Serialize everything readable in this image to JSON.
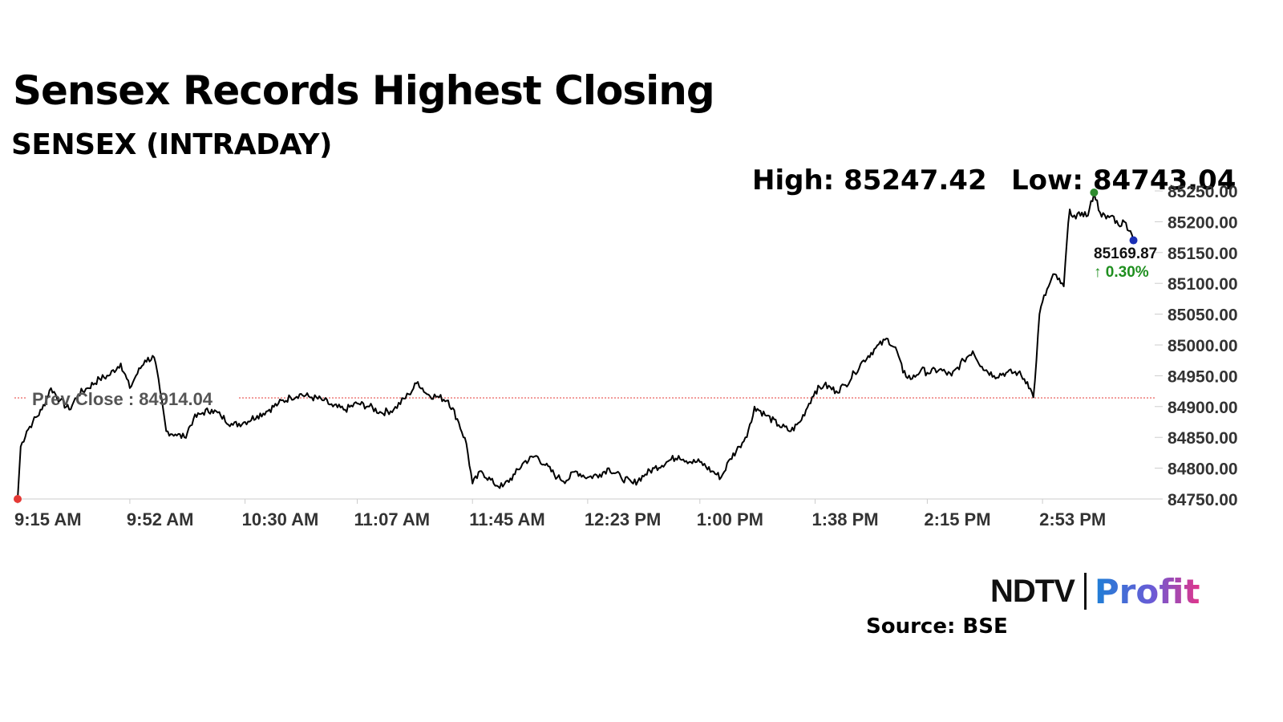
{
  "header": {
    "title": "Sensex Records Highest Closing",
    "subtitle": "SENSEX (INTRADAY)",
    "high_text": "High: 85247.42",
    "low_text": "Low: 84743.04"
  },
  "footer": {
    "brand_left": "NDTV",
    "brand_right": "Profit",
    "source": "Source: BSE"
  },
  "colors": {
    "line": "#000000",
    "prev_close_line": "#e53935",
    "start_marker": "#e53935",
    "high_marker": "#2e8b2e",
    "last_marker": "#1a2fb5",
    "change_text": "#1f8f1f",
    "grid_axis": "#cccccc"
  },
  "chart_data": {
    "type": "line",
    "title": "SENSEX (INTRADAY)",
    "xlabel": "",
    "ylabel": "",
    "ylim": [
      84750,
      85250
    ],
    "grid": false,
    "y_axis_position": "right",
    "x_ticks": [
      "9:15 AM",
      "9:52 AM",
      "10:30 AM",
      "11:07 AM",
      "11:45 AM",
      "12:23 PM",
      "1:00 PM",
      "1:38 PM",
      "2:15 PM",
      "2:53 PM"
    ],
    "y_ticks": [
      "85250.00",
      "85200.00",
      "85150.00",
      "85100.00",
      "85050.00",
      "85000.00",
      "84950.00",
      "84900.00",
      "84850.00",
      "84800.00",
      "84750.00"
    ],
    "prev_close": {
      "label": "Prev Close : 84914.04",
      "value": 84914.04
    },
    "high": 85247.42,
    "low": 84743.04,
    "last": {
      "label": "85169.87",
      "value": 85169.87,
      "change": "↑ 0.30%"
    },
    "series": [
      {
        "points": [
          [
            "9:15 AM",
            84750
          ],
          [
            "9:16 AM",
            84835
          ],
          [
            "9:18 AM",
            84860
          ],
          [
            "9:20 AM",
            84875
          ],
          [
            "9:23 AM",
            84895
          ],
          [
            "9:26 AM",
            84930
          ],
          [
            "9:29 AM",
            84910
          ],
          [
            "9:32 AM",
            84895
          ],
          [
            "9:35 AM",
            84920
          ],
          [
            "9:38 AM",
            84930
          ],
          [
            "9:42 AM",
            84945
          ],
          [
            "9:45 AM",
            84950
          ],
          [
            "9:49 AM",
            84970
          ],
          [
            "9:52 AM",
            84930
          ],
          [
            "9:54 AM",
            84950
          ],
          [
            "9:57 AM",
            84975
          ],
          [
            "10:00 AM",
            84980
          ],
          [
            "10:02 AM",
            84925
          ],
          [
            "10:04 AM",
            84860
          ],
          [
            "10:07 AM",
            84855
          ],
          [
            "10:10 AM",
            84850
          ],
          [
            "10:13 AM",
            84880
          ],
          [
            "10:16 AM",
            84890
          ],
          [
            "10:19 AM",
            84895
          ],
          [
            "10:22 AM",
            84885
          ],
          [
            "10:26 AM",
            84870
          ],
          [
            "10:30 AM",
            84875
          ],
          [
            "10:34 AM",
            84885
          ],
          [
            "10:38 AM",
            84895
          ],
          [
            "10:41 AM",
            84905
          ],
          [
            "10:45 AM",
            84915
          ],
          [
            "10:48 AM",
            84920
          ],
          [
            "10:52 AM",
            84915
          ],
          [
            "10:56 AM",
            84910
          ],
          [
            "10:59 AM",
            84900
          ],
          [
            "11:03 AM",
            84895
          ],
          [
            "11:07 AM",
            84905
          ],
          [
            "11:11 AM",
            84900
          ],
          [
            "11:15 AM",
            84890
          ],
          [
            "11:19 AM",
            84895
          ],
          [
            "11:24 AM",
            84920
          ],
          [
            "11:27 AM",
            84940
          ],
          [
            "11:30 AM",
            84920
          ],
          [
            "11:34 AM",
            84915
          ],
          [
            "11:37 AM",
            84910
          ],
          [
            "11:40 AM",
            84880
          ],
          [
            "11:43 AM",
            84840
          ],
          [
            "11:45 AM",
            84775
          ],
          [
            "11:48 AM",
            84795
          ],
          [
            "11:52 AM",
            84775
          ],
          [
            "11:55 AM",
            84770
          ],
          [
            "11:59 AM",
            84790
          ],
          [
            "12:02 PM",
            84810
          ],
          [
            "12:06 PM",
            84820
          ],
          [
            "12:09 PM",
            84805
          ],
          [
            "12:13 PM",
            84785
          ],
          [
            "12:16 PM",
            84780
          ],
          [
            "12:19 PM",
            84795
          ],
          [
            "12:23 PM",
            84785
          ],
          [
            "12:27 PM",
            84790
          ],
          [
            "12:30 PM",
            84800
          ],
          [
            "12:34 PM",
            84785
          ],
          [
            "12:38 PM",
            84775
          ],
          [
            "12:42 PM",
            84790
          ],
          [
            "12:45 PM",
            84800
          ],
          [
            "12:49 PM",
            84810
          ],
          [
            "12:53 PM",
            84820
          ],
          [
            "12:57 PM",
            84810
          ],
          [
            "1:00 PM",
            84810
          ],
          [
            "1:04 PM",
            84795
          ],
          [
            "1:07 PM",
            84785
          ],
          [
            "1:10 PM",
            84815
          ],
          [
            "1:13 PM",
            84835
          ],
          [
            "1:15 PM",
            84850
          ],
          [
            "1:17 PM",
            84875
          ],
          [
            "1:18 PM",
            84900
          ],
          [
            "1:22 PM",
            84885
          ],
          [
            "1:26 PM",
            84870
          ],
          [
            "1:30 PM",
            84860
          ],
          [
            "1:33 PM",
            84875
          ],
          [
            "1:36 PM",
            84905
          ],
          [
            "1:38 PM",
            84925
          ],
          [
            "1:41 PM",
            84935
          ],
          [
            "1:45 PM",
            84925
          ],
          [
            "1:48 PM",
            84935
          ],
          [
            "1:51 PM",
            84955
          ],
          [
            "1:54 PM",
            84975
          ],
          [
            "1:58 PM",
            84995
          ],
          [
            "2:02 PM",
            85010
          ],
          [
            "2:05 PM",
            84990
          ],
          [
            "2:07 PM",
            84955
          ],
          [
            "2:10 PM",
            84945
          ],
          [
            "2:13 PM",
            84960
          ],
          [
            "2:15 PM",
            84955
          ],
          [
            "2:19 PM",
            84960
          ],
          [
            "2:23 PM",
            84950
          ],
          [
            "2:27 PM",
            84975
          ],
          [
            "2:30 PM",
            84990
          ],
          [
            "2:33 PM",
            84965
          ],
          [
            "2:37 PM",
            84950
          ],
          [
            "2:41 PM",
            84955
          ],
          [
            "2:45 PM",
            84955
          ],
          [
            "2:48 PM",
            84940
          ],
          [
            "2:50 PM",
            84915
          ],
          [
            "2:51 PM",
            84975
          ],
          [
            "2:52 PM",
            85050
          ],
          [
            "2:53 PM",
            85070
          ],
          [
            "2:55 PM",
            85095
          ],
          [
            "2:57 PM",
            85115
          ],
          [
            "2:59 PM",
            85100
          ],
          [
            "3:00 PM",
            85095
          ],
          [
            "3:01 PM",
            85165
          ],
          [
            "3:02 PM",
            85220
          ],
          [
            "3:04 PM",
            85205
          ],
          [
            "3:06 PM",
            85215
          ],
          [
            "3:08 PM",
            85210
          ],
          [
            "3:10 PM",
            85247.42
          ],
          [
            "3:12 PM",
            85215
          ],
          [
            "3:14 PM",
            85205
          ],
          [
            "3:16 PM",
            85210
          ],
          [
            "3:18 PM",
            85195
          ],
          [
            "3:20 PM",
            85200
          ],
          [
            "3:22 PM",
            85185
          ],
          [
            "3:23 PM",
            85169.87
          ]
        ]
      }
    ]
  }
}
